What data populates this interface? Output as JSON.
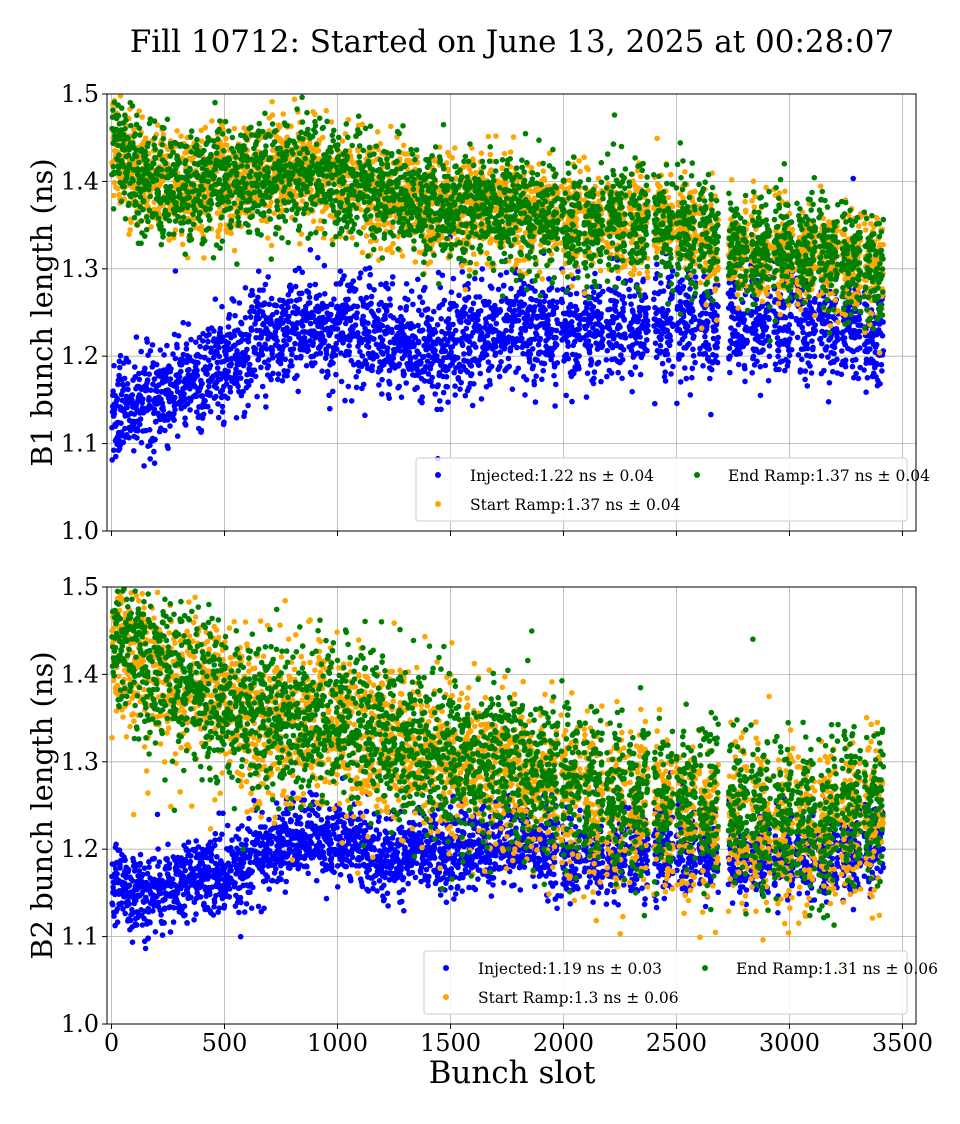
{
  "chart_data": {
    "type": "scatter",
    "title": "Fill 10712: Started on June 13, 2025 at 00:28:07",
    "xlabel": "Bunch slot",
    "xlim": [
      -20,
      3560
    ],
    "xticks": [
      0,
      500,
      1000,
      1500,
      2000,
      2500,
      3000,
      3500
    ],
    "grid": true,
    "legend_position": "lower-right",
    "colors": {
      "Injected": "#0000ff",
      "Start Ramp": "#ffa500",
      "End Ramp": "#008000"
    },
    "train_starts": [
      2,
      90,
      180,
      270,
      360,
      450,
      540,
      630,
      720,
      810,
      900,
      990,
      1080,
      1170,
      1260,
      1350,
      1440,
      1530,
      1620,
      1710,
      1800,
      1890,
      1990,
      2090,
      2190,
      2290,
      2400,
      2500,
      2600,
      2730,
      2830,
      2930,
      3030,
      3130,
      3230,
      3330
    ],
    "train_length": 86,
    "subplots": [
      {
        "ylabel": "B1 bunch length (ns)",
        "ylim": [
          1.0,
          1.5
        ],
        "yticks": [
          "1.0",
          "1.1",
          "1.2",
          "1.3",
          "1.4",
          "1.5"
        ],
        "series": [
          {
            "name": "Injected",
            "legend_label": "Injected:1.22 ns ± 0.04",
            "mean": 1.22,
            "std": 0.04,
            "profile_x": [
              0,
              200,
              400,
              600,
              800,
              1000,
              1200,
              1400,
              1600,
              1800,
              2000,
              2200,
              2400,
              2600,
              2800,
              3000,
              3200,
              3420
            ],
            "profile_y": [
              1.13,
              1.15,
              1.18,
              1.21,
              1.23,
              1.23,
              1.22,
              1.21,
              1.22,
              1.24,
              1.23,
              1.23,
              1.24,
              1.24,
              1.23,
              1.24,
              1.24,
              1.22
            ]
          },
          {
            "name": "Start Ramp",
            "legend_label": "Start Ramp:1.37 ns ± 0.04",
            "mean": 1.37,
            "std": 0.04,
            "profile_x": [
              0,
              100,
              300,
              500,
              700,
              900,
              1100,
              1300,
              1500,
              1700,
              1900,
              2100,
              2300,
              2500,
              2700,
              2900,
              3100,
              3300,
              3420
            ],
            "profile_y": [
              1.45,
              1.41,
              1.39,
              1.4,
              1.41,
              1.41,
              1.39,
              1.38,
              1.37,
              1.37,
              1.36,
              1.36,
              1.35,
              1.35,
              1.33,
              1.32,
              1.31,
              1.31,
              1.3
            ]
          },
          {
            "name": "End Ramp",
            "legend_label": "End Ramp:1.37 ns ± 0.04",
            "mean": 1.37,
            "std": 0.04,
            "profile_x": [
              0,
              100,
              300,
              500,
              700,
              900,
              1100,
              1300,
              1500,
              1700,
              1900,
              2100,
              2300,
              2500,
              2700,
              2900,
              3100,
              3300,
              3420
            ],
            "profile_y": [
              1.46,
              1.41,
              1.39,
              1.4,
              1.41,
              1.41,
              1.39,
              1.38,
              1.37,
              1.37,
              1.36,
              1.35,
              1.35,
              1.35,
              1.33,
              1.32,
              1.32,
              1.31,
              1.3
            ]
          }
        ]
      },
      {
        "ylabel": "B2 bunch length (ns)",
        "ylim": [
          1.0,
          1.5
        ],
        "yticks": [
          "1.0",
          "1.1",
          "1.2",
          "1.3",
          "1.4",
          "1.5"
        ],
        "series": [
          {
            "name": "Injected",
            "legend_label": "Injected:1.19 ns ± 0.03",
            "mean": 1.19,
            "std": 0.03,
            "profile_x": [
              0,
              200,
              400,
              600,
              800,
              1000,
              1200,
              1400,
              1600,
              1800,
              2000,
              2200,
              2400,
              2600,
              2800,
              3000,
              3200,
              3420
            ],
            "profile_y": [
              1.16,
              1.15,
              1.17,
              1.18,
              1.21,
              1.21,
              1.19,
              1.2,
              1.2,
              1.21,
              1.19,
              1.19,
              1.2,
              1.2,
              1.19,
              1.19,
              1.19,
              1.21
            ]
          },
          {
            "name": "Start Ramp",
            "legend_label": "Start Ramp:1.3 ns ± 0.06",
            "mean": 1.3,
            "std": 0.06,
            "profile_x": [
              0,
              100,
              300,
              500,
              700,
              900,
              1100,
              1300,
              1500,
              1700,
              1900,
              2100,
              2300,
              2500,
              2700,
              2900,
              3100,
              3300,
              3420
            ],
            "profile_y": [
              1.45,
              1.42,
              1.39,
              1.37,
              1.33,
              1.35,
              1.33,
              1.32,
              1.3,
              1.3,
              1.28,
              1.25,
              1.25,
              1.24,
              1.23,
              1.22,
              1.22,
              1.23,
              1.24
            ]
          },
          {
            "name": "End Ramp",
            "legend_label": "End Ramp:1.31 ns ± 0.06",
            "mean": 1.31,
            "std": 0.06,
            "profile_x": [
              0,
              100,
              300,
              500,
              700,
              900,
              1100,
              1300,
              1500,
              1700,
              1900,
              2100,
              2300,
              2500,
              2700,
              2900,
              3100,
              3300,
              3420
            ],
            "profile_y": [
              1.45,
              1.42,
              1.39,
              1.37,
              1.34,
              1.35,
              1.34,
              1.32,
              1.3,
              1.3,
              1.29,
              1.27,
              1.26,
              1.26,
              1.25,
              1.24,
              1.23,
              1.25,
              1.26
            ]
          }
        ]
      }
    ]
  }
}
